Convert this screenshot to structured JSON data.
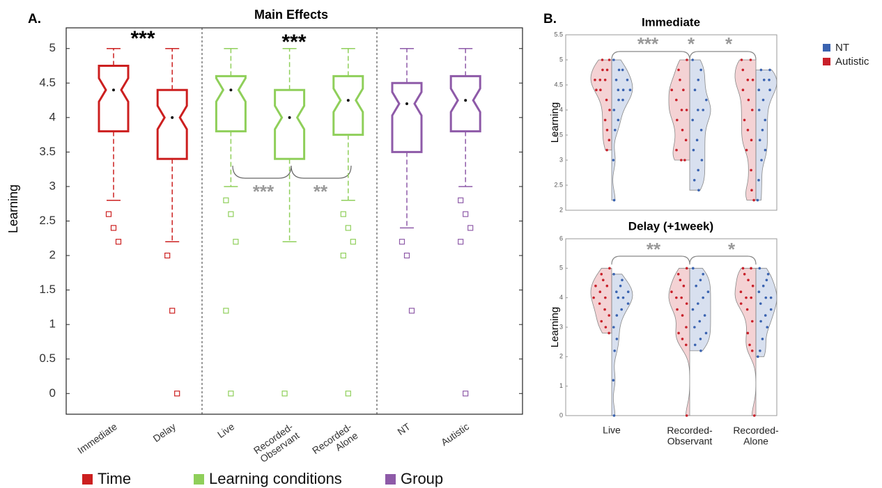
{
  "chart_data": [
    {
      "type": "box",
      "panel_label": "A.",
      "title": "Main Effects",
      "ylabel": "Learning",
      "ylim": [
        -0.3,
        5.3
      ],
      "yticks": [
        0,
        0.5,
        1,
        1.5,
        2,
        2.5,
        3,
        3.5,
        4,
        4.5,
        5
      ],
      "series": [
        {
          "name": "Time",
          "color": "#cc1f1f",
          "categories": [
            "Immediate",
            "Delay"
          ],
          "boxes": [
            {
              "whislo": 2.8,
              "q1": 3.8,
              "med": 4.4,
              "q3": 4.75,
              "whishi": 5,
              "fliers": [
                2.6,
                2.4,
                2.2
              ]
            },
            {
              "whislo": 2.2,
              "q1": 3.4,
              "med": 4.0,
              "q3": 4.4,
              "whishi": 5,
              "fliers": [
                2.0,
                1.2,
                0
              ]
            }
          ]
        },
        {
          "name": "Learning conditions",
          "color": "#8fcf5a",
          "categories": [
            "Live",
            "Recorded-Observant",
            "Recorded-Alone"
          ],
          "boxes": [
            {
              "whislo": 3.0,
              "q1": 3.8,
              "med": 4.4,
              "q3": 4.6,
              "whishi": 5,
              "fliers": [
                2.8,
                2.6,
                2.2,
                1.2,
                0
              ]
            },
            {
              "whislo": 2.2,
              "q1": 3.4,
              "med": 4.0,
              "q3": 4.4,
              "whishi": 5,
              "fliers": [
                0
              ]
            },
            {
              "whislo": 2.8,
              "q1": 3.75,
              "med": 4.25,
              "q3": 4.6,
              "whishi": 5,
              "fliers": [
                2.6,
                2.4,
                2.2,
                2.0,
                0
              ]
            }
          ]
        },
        {
          "name": "Group",
          "color": "#8e5aa8",
          "categories": [
            "NT",
            "Autistic"
          ],
          "boxes": [
            {
              "whislo": 2.4,
              "q1": 3.5,
              "med": 4.2,
              "q3": 4.5,
              "whishi": 5,
              "fliers": [
                2.2,
                2.0,
                1.2
              ]
            },
            {
              "whislo": 3.0,
              "q1": 3.8,
              "med": 4.25,
              "q3": 4.6,
              "whishi": 5,
              "fliers": [
                2.8,
                2.6,
                2.4,
                2.2,
                0
              ]
            }
          ]
        }
      ],
      "annotations": [
        "***",
        "***",
        "***",
        "**"
      ]
    },
    {
      "type": "violin",
      "panel_label": "B.",
      "title": "Immediate",
      "ylabel": "Learning",
      "ylim": [
        2,
        5.5
      ],
      "yticks": [
        2,
        2.5,
        3,
        3.5,
        4,
        4.5,
        5,
        5.5
      ],
      "series": [
        {
          "name": "NT",
          "color": "#3a63b0",
          "values": [
            [
              5,
              4.8,
              4.8,
              4.6,
              4.6,
              4.4,
              4.4,
              4.4,
              4.2,
              4.2,
              4.0,
              3.8,
              3.6,
              3.0,
              2.2
            ],
            [
              5,
              4.8,
              4.6,
              4.4,
              4.2,
              4.0,
              4.0,
              3.8,
              3.6,
              3.4,
              3.2,
              3.0,
              2.8,
              2.6,
              2.4
            ],
            [
              4.8,
              4.8,
              4.6,
              4.6,
              4.4,
              4.4,
              4.2,
              4.0,
              3.8,
              3.6,
              3.4,
              3.2,
              3.0,
              2.6,
              2.2
            ]
          ]
        },
        {
          "name": "Autistic",
          "color": "#c8202a",
          "values": [
            [
              5,
              5,
              4.8,
              4.8,
              4.6,
              4.6,
              4.6,
              4.4,
              4.4,
              4.2,
              4.0,
              3.8,
              3.6,
              3.4,
              3.2
            ],
            [
              5,
              4.8,
              4.6,
              4.4,
              4.4,
              4.2,
              4.0,
              4.0,
              3.8,
              3.6,
              3.4,
              3.2,
              3.0,
              3.0
            ],
            [
              5,
              5,
              4.8,
              4.6,
              4.6,
              4.4,
              4.2,
              4.0,
              3.8,
              3.6,
              3.4,
              3.2,
              2.8,
              2.4,
              2.2
            ]
          ]
        }
      ],
      "annotations": [
        "***",
        "*",
        "*"
      ]
    },
    {
      "type": "violin",
      "title": "Delay (+1week)",
      "ylabel": "Learning",
      "ylim": [
        0,
        6
      ],
      "yticks": [
        0,
        1,
        2,
        3,
        4,
        5,
        6
      ],
      "categories": [
        "Live",
        "Recorded-Observant",
        "Recorded-Alone"
      ],
      "series": [
        {
          "name": "NT",
          "color": "#3a63b0",
          "values": [
            [
              4.8,
              4.6,
              4.4,
              4.2,
              4.2,
              4.0,
              4.0,
              3.8,
              3.6,
              3.4,
              3.0,
              2.6,
              2.2,
              1.2,
              0
            ],
            [
              5,
              4.8,
              4.6,
              4.4,
              4.2,
              4.0,
              3.8,
              3.6,
              3.4,
              3.2,
              3.0,
              2.8,
              2.6,
              2.4,
              2.2
            ],
            [
              5,
              4.8,
              4.6,
              4.4,
              4.2,
              4.0,
              4.0,
              3.8,
              3.6,
              3.4,
              3.2,
              3.0,
              2.6,
              2.2,
              2.0
            ]
          ]
        },
        {
          "name": "Autistic",
          "color": "#c8202a",
          "values": [
            [
              5,
              4.8,
              4.6,
              4.4,
              4.4,
              4.2,
              4.0,
              4.0,
              3.8,
              3.6,
              3.4,
              3.2,
              3.0,
              2.8
            ],
            [
              5,
              4.8,
              4.6,
              4.4,
              4.2,
              4.0,
              4.0,
              3.8,
              3.6,
              3.4,
              3.0,
              2.8,
              2.6,
              2.4,
              0
            ],
            [
              5,
              5,
              4.8,
              4.6,
              4.4,
              4.2,
              4.0,
              4.0,
              3.8,
              3.6,
              3.2,
              2.8,
              2.4,
              2.2,
              0
            ]
          ]
        }
      ],
      "annotations": [
        "**",
        "*"
      ]
    }
  ]
}
